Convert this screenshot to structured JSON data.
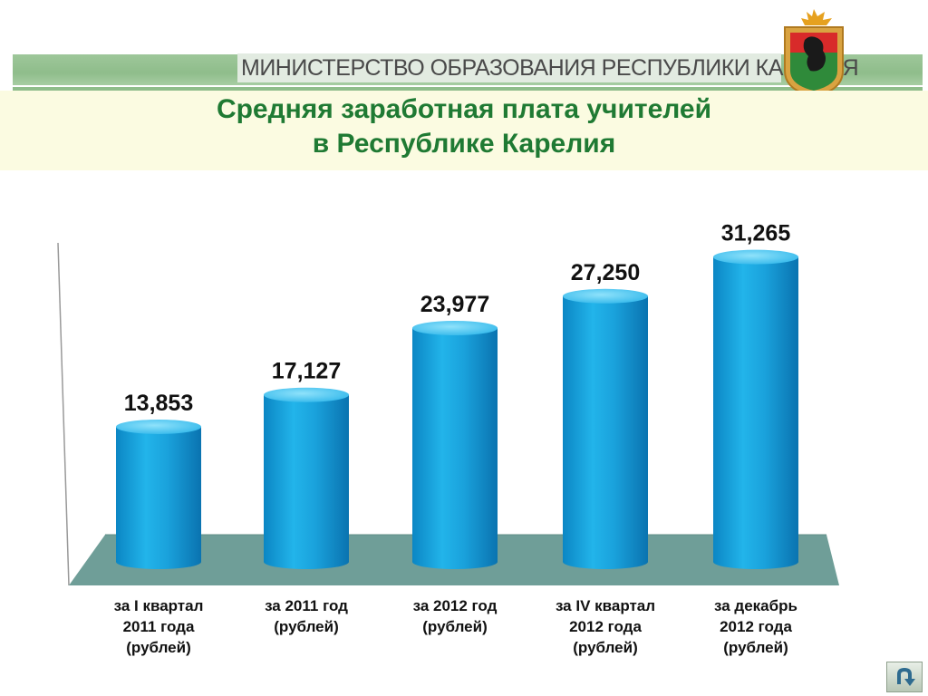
{
  "header": {
    "ministry": "МИНИСТЕРСТВО ОБРАЗОВАНИЯ РЕСПУБЛИКИ КАРЕЛИЯ",
    "title_line1": "Средняя заработная плата учителей",
    "title_line2": "в Республике Карелия"
  },
  "colors": {
    "bar": "#1aa8e0",
    "bar_top": "#5ed0f5",
    "floor": "#6f9e98",
    "title": "#1f7a33",
    "header_band": "#8fbd8b"
  },
  "chart_data": {
    "type": "bar",
    "categories": [
      "за I квартал 2011 года (рублей)",
      "за 2011 год (рублей)",
      "за 2012 год (рублей)",
      "за IV квартал 2012 года (рублей)",
      "за декабрь 2012 года (рублей)"
    ],
    "category_lines": [
      [
        "за I квартал",
        "2011 года",
        "(рублей)"
      ],
      [
        "за 2011 год",
        "(рублей)"
      ],
      [
        "за 2012 год",
        "(рублей)"
      ],
      [
        "за IV квартал",
        "2012 года",
        "(рублей)"
      ],
      [
        "за декабрь",
        "2012 года",
        "(рублей)"
      ]
    ],
    "values": [
      13853,
      17127,
      23977,
      27250,
      31265
    ],
    "labels": [
      "13,853",
      "17,127",
      "23,977",
      "27,250",
      "31,265"
    ],
    "title": "",
    "xlabel": "",
    "ylabel": "",
    "ylim": [
      0,
      35000
    ],
    "grid": false,
    "legend": "none"
  },
  "nav": {
    "icon": "return-arrow-icon"
  }
}
